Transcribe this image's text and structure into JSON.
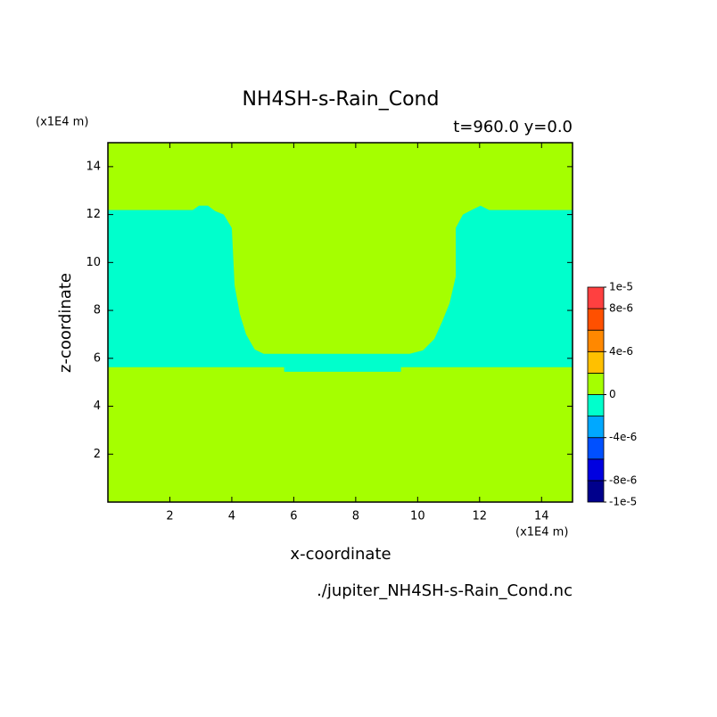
{
  "chart_data": {
    "type": "contour",
    "title": "NH4SH-s-Rain_Cond",
    "subtitle": "t=960.0 y=0.0",
    "xlabel": "x-coordinate",
    "ylabel": "z-coordinate",
    "x_unit": "(x1E4 m)",
    "y_unit": "(x1E4 m)",
    "footer": "./jupiter_NH4SH-s-Rain_Cond.nc",
    "xlim": [
      0,
      15
    ],
    "ylim": [
      0,
      15
    ],
    "xticks": [
      2,
      4,
      6,
      8,
      10,
      12,
      14
    ],
    "yticks": [
      2,
      4,
      6,
      8,
      10,
      12,
      14
    ],
    "background_color": "#a5ff00",
    "regions": [
      {
        "color": "#00ffcc",
        "x": [
          0,
          0,
          5.69,
          5.69,
          9.46,
          9.46,
          15,
          15,
          12.31,
          12.03,
          11.74,
          11.46,
          11.23,
          11.23,
          11.03,
          10.8,
          10.54,
          10.17,
          9.74,
          5.03,
          4.74,
          4.46,
          4.26,
          4.09,
          4.0,
          3.74,
          3.46,
          3.23,
          2.94,
          2.74
        ],
        "y": [
          12.19,
          5.63,
          5.63,
          5.44,
          5.44,
          5.63,
          5.63,
          12.19,
          12.19,
          12.37,
          12.19,
          12.0,
          11.44,
          9.41,
          8.3,
          7.56,
          6.81,
          6.33,
          6.19,
          6.19,
          6.37,
          7.0,
          7.85,
          9.04,
          11.44,
          12.0,
          12.15,
          12.37,
          12.37,
          12.19
        ]
      }
    ],
    "colorbar": {
      "bounds": [
        -1e-05,
        -8e-06,
        -6e-06,
        -4e-06,
        -2e-06,
        0,
        2e-06,
        4e-06,
        6e-06,
        8e-06,
        1e-05
      ],
      "colors": [
        "#00008c",
        "#0000e0",
        "#0050ff",
        "#00a8ff",
        "#00ffcc",
        "#a5ff00",
        "#ffc000",
        "#ff8800",
        "#ff5000",
        "#ff4040"
      ],
      "ticks": [
        {
          "value": -1e-05,
          "label": "-1e-5"
        },
        {
          "value": -8e-06,
          "label": "-8e-6"
        },
        {
          "value": -4e-06,
          "label": "-4e-6"
        },
        0,
        {
          "value": 4e-06,
          "label": "4e-6"
        },
        {
          "value": 8e-06,
          "label": "8e-6"
        },
        {
          "value": 1e-05,
          "label": "1e-5"
        }
      ]
    }
  }
}
